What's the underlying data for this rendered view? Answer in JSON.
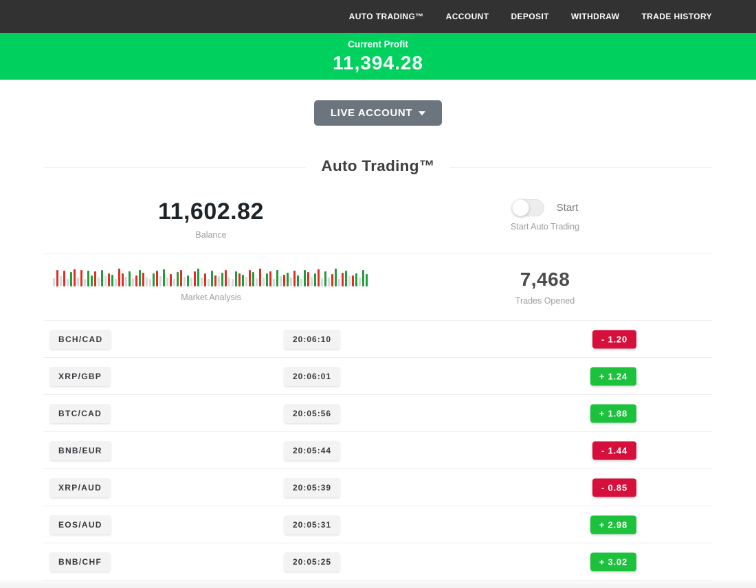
{
  "nav": {
    "items": [
      {
        "label": "AUTO TRADING™"
      },
      {
        "label": "ACCOUNT"
      },
      {
        "label": "DEPOSIT"
      },
      {
        "label": "WITHDRAW"
      },
      {
        "label": "TRADE HISTORY"
      }
    ]
  },
  "profit_banner": {
    "label": "Current Profit",
    "value": "11,394.28"
  },
  "account_selector": {
    "label": "LIVE ACCOUNT"
  },
  "section": {
    "title": "Auto Trading™"
  },
  "stats": {
    "balance": {
      "value": "11,602.82",
      "label": "Balance"
    },
    "auto_trading": {
      "toggle_label": "Start",
      "label": "Start Auto Trading",
      "toggle_state": "off"
    },
    "market": {
      "label": "Market Analysis"
    },
    "trades_opened": {
      "value": "7,468",
      "label": "Trades Opened"
    }
  },
  "trades": [
    {
      "pair": "BCH/CAD",
      "time": "20:06:10",
      "result": "-  1.20",
      "direction": "loss"
    },
    {
      "pair": "XRP/GBP",
      "time": "20:06:01",
      "result": "+  1.24",
      "direction": "profit"
    },
    {
      "pair": "BTC/CAD",
      "time": "20:05:56",
      "result": "+  1.88",
      "direction": "profit"
    },
    {
      "pair": "BNB/EUR",
      "time": "20:05:44",
      "result": "-  1.44",
      "direction": "loss"
    },
    {
      "pair": "XRP/AUD",
      "time": "20:05:39",
      "result": "-  0.85",
      "direction": "loss"
    },
    {
      "pair": "EOS/AUD",
      "time": "20:05:31",
      "result": "+  2.98",
      "direction": "profit"
    },
    {
      "pair": "BNB/CHF",
      "time": "20:05:25",
      "result": "+  3.02",
      "direction": "profit"
    }
  ],
  "colors": {
    "nav_background": "#323232",
    "banner_green": "#00d15e",
    "account_button_gray": "#6c757d",
    "badge_red": "#d60f3c",
    "badge_green": "#1cc23b",
    "bar_red": "#df3024",
    "bar_green": "#1f9e3c",
    "bar_gray": "#d9d9d9"
  },
  "chart_data": {
    "type": "bar",
    "title": "Market Analysis",
    "description": "decorative mini candlestick-style strip; color n=gray r=red g=green, height is % of 27px",
    "legend_position": "none",
    "bars": [
      [
        "n",
        45
      ],
      [
        "r",
        90
      ],
      [
        "n",
        55
      ],
      [
        "r",
        85
      ],
      [
        "n",
        40
      ],
      [
        "g",
        78
      ],
      [
        "r",
        92
      ],
      [
        "n",
        50
      ],
      [
        "r",
        88
      ],
      [
        "n",
        42
      ],
      [
        "g",
        85
      ],
      [
        "g",
        60
      ],
      [
        "r",
        80
      ],
      [
        "n",
        48
      ],
      [
        "g",
        90
      ],
      [
        "n",
        55
      ],
      [
        "r",
        72
      ],
      [
        "g",
        64
      ],
      [
        "n",
        40
      ],
      [
        "r",
        95
      ],
      [
        "r",
        70
      ],
      [
        "n",
        52
      ],
      [
        "g",
        82
      ],
      [
        "n",
        45
      ],
      [
        "r",
        60
      ],
      [
        "g",
        88
      ],
      [
        "r",
        75
      ],
      [
        "n",
        50
      ],
      [
        "n",
        42
      ],
      [
        "g",
        70
      ],
      [
        "r",
        85
      ],
      [
        "n",
        55
      ],
      [
        "g",
        92
      ],
      [
        "n",
        48
      ],
      [
        "r",
        66
      ],
      [
        "n",
        40
      ],
      [
        "g",
        78
      ],
      [
        "r",
        88
      ],
      [
        "n",
        52
      ],
      [
        "g",
        60
      ],
      [
        "n",
        45
      ],
      [
        "r",
        82
      ],
      [
        "g",
        95
      ],
      [
        "n",
        50
      ],
      [
        "r",
        70
      ],
      [
        "n",
        42
      ],
      [
        "g",
        85
      ],
      [
        "r",
        60
      ],
      [
        "n",
        55
      ],
      [
        "g",
        75
      ],
      [
        "r",
        90
      ],
      [
        "n",
        48
      ],
      [
        "n",
        40
      ],
      [
        "g",
        82
      ],
      [
        "r",
        72
      ],
      [
        "g",
        64
      ],
      [
        "n",
        52
      ],
      [
        "r",
        88
      ],
      [
        "g",
        78
      ],
      [
        "n",
        45
      ],
      [
        "r",
        95
      ],
      [
        "n",
        50
      ],
      [
        "g",
        70
      ],
      [
        "r",
        82
      ],
      [
        "n",
        42
      ],
      [
        "g",
        90
      ],
      [
        "n",
        55
      ],
      [
        "r",
        64
      ],
      [
        "g",
        75
      ],
      [
        "n",
        48
      ],
      [
        "r",
        85
      ],
      [
        "g",
        60
      ],
      [
        "n",
        40
      ],
      [
        "g",
        88
      ],
      [
        "r",
        78
      ],
      [
        "n",
        52
      ],
      [
        "g",
        70
      ],
      [
        "r",
        92
      ],
      [
        "n",
        45
      ],
      [
        "g",
        82
      ],
      [
        "n",
        50
      ],
      [
        "r",
        68
      ],
      [
        "g",
        95
      ],
      [
        "n",
        42
      ],
      [
        "r",
        75
      ],
      [
        "g",
        85
      ],
      [
        "n",
        55
      ],
      [
        "r",
        60
      ],
      [
        "g",
        72
      ],
      [
        "n",
        48
      ],
      [
        "g",
        88
      ],
      [
        "g",
        65
      ]
    ]
  }
}
